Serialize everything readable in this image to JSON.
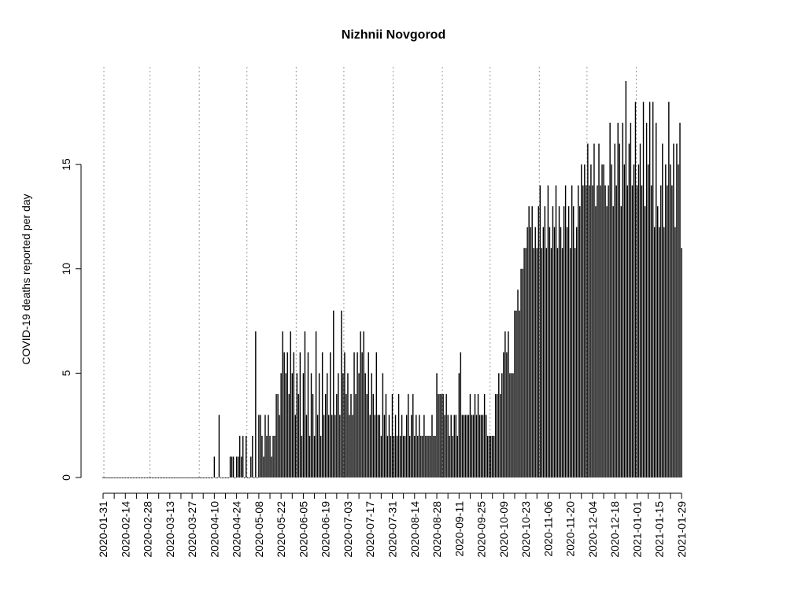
{
  "chart_data": {
    "type": "bar",
    "title": "Nizhnii Novgorod",
    "y_label": "COVID-19 deaths reported per day",
    "color": "#000000",
    "x": [
      "2020-01-31",
      "2020-02-01",
      "2020-02-02",
      "2020-02-03",
      "2020-02-04",
      "2020-02-05",
      "2020-02-06",
      "2020-02-07",
      "2020-02-08",
      "2020-02-09",
      "2020-02-10",
      "2020-02-11",
      "2020-02-12",
      "2020-02-13",
      "2020-02-14",
      "2020-02-15",
      "2020-02-16",
      "2020-02-17",
      "2020-02-18",
      "2020-02-19",
      "2020-02-20",
      "2020-02-21",
      "2020-02-22",
      "2020-02-23",
      "2020-02-24",
      "2020-02-25",
      "2020-02-26",
      "2020-02-27",
      "2020-02-28",
      "2020-02-29",
      "2020-03-01",
      "2020-03-02",
      "2020-03-03",
      "2020-03-04",
      "2020-03-05",
      "2020-03-06",
      "2020-03-07",
      "2020-03-08",
      "2020-03-09",
      "2020-03-10",
      "2020-03-11",
      "2020-03-12",
      "2020-03-13",
      "2020-03-14",
      "2020-03-15",
      "2020-03-16",
      "2020-03-17",
      "2020-03-18",
      "2020-03-19",
      "2020-03-20",
      "2020-03-21",
      "2020-03-22",
      "2020-03-23",
      "2020-03-24",
      "2020-03-25",
      "2020-03-26",
      "2020-03-27",
      "2020-03-28",
      "2020-03-29",
      "2020-03-30",
      "2020-03-31",
      "2020-04-01",
      "2020-04-02",
      "2020-04-03",
      "2020-04-04",
      "2020-04-05",
      "2020-04-06",
      "2020-04-07",
      "2020-04-08",
      "2020-04-09",
      "2020-04-10",
      "2020-04-11",
      "2020-04-12",
      "2020-04-13",
      "2020-04-14",
      "2020-04-15",
      "2020-04-16",
      "2020-04-17",
      "2020-04-18",
      "2020-04-19",
      "2020-04-20",
      "2020-04-21",
      "2020-04-22",
      "2020-04-23",
      "2020-04-24",
      "2020-04-25",
      "2020-04-26",
      "2020-04-27",
      "2020-04-28",
      "2020-04-29",
      "2020-04-30",
      "2020-05-01",
      "2020-05-02",
      "2020-05-03",
      "2020-05-04",
      "2020-05-05",
      "2020-05-06",
      "2020-05-07",
      "2020-05-08",
      "2020-05-09",
      "2020-05-10",
      "2020-05-11",
      "2020-05-12",
      "2020-05-13",
      "2020-05-14",
      "2020-05-15",
      "2020-05-16",
      "2020-05-17",
      "2020-05-18",
      "2020-05-19",
      "2020-05-20",
      "2020-05-21",
      "2020-05-22",
      "2020-05-23",
      "2020-05-24",
      "2020-05-25",
      "2020-05-26",
      "2020-05-27",
      "2020-05-28",
      "2020-05-29",
      "2020-05-30",
      "2020-05-31",
      "2020-06-01",
      "2020-06-02",
      "2020-06-03",
      "2020-06-04",
      "2020-06-05",
      "2020-06-06",
      "2020-06-07",
      "2020-06-08",
      "2020-06-09",
      "2020-06-10",
      "2020-06-11",
      "2020-06-12",
      "2020-06-13",
      "2020-06-14",
      "2020-06-15",
      "2020-06-16",
      "2020-06-17",
      "2020-06-18",
      "2020-06-19",
      "2020-06-20",
      "2020-06-21",
      "2020-06-22",
      "2020-06-23",
      "2020-06-24",
      "2020-06-25",
      "2020-06-26",
      "2020-06-27",
      "2020-06-28",
      "2020-06-29",
      "2020-06-30",
      "2020-07-01",
      "2020-07-02",
      "2020-07-03",
      "2020-07-04",
      "2020-07-05",
      "2020-07-06",
      "2020-07-07",
      "2020-07-08",
      "2020-07-09",
      "2020-07-10",
      "2020-07-11",
      "2020-07-12",
      "2020-07-13",
      "2020-07-14",
      "2020-07-15",
      "2020-07-16",
      "2020-07-17",
      "2020-07-18",
      "2020-07-19",
      "2020-07-20",
      "2020-07-21",
      "2020-07-22",
      "2020-07-23",
      "2020-07-24",
      "2020-07-25",
      "2020-07-26",
      "2020-07-27",
      "2020-07-28",
      "2020-07-29",
      "2020-07-30",
      "2020-07-31",
      "2020-08-01",
      "2020-08-02",
      "2020-08-03",
      "2020-08-04",
      "2020-08-05",
      "2020-08-06",
      "2020-08-07",
      "2020-08-08",
      "2020-08-09",
      "2020-08-10",
      "2020-08-11",
      "2020-08-12",
      "2020-08-13",
      "2020-08-14",
      "2020-08-15",
      "2020-08-16",
      "2020-08-17",
      "2020-08-18",
      "2020-08-19",
      "2020-08-20",
      "2020-08-21",
      "2020-08-22",
      "2020-08-23",
      "2020-08-24",
      "2020-08-25",
      "2020-08-26",
      "2020-08-27",
      "2020-08-28",
      "2020-08-29",
      "2020-08-30",
      "2020-08-31",
      "2020-09-01",
      "2020-09-02",
      "2020-09-03",
      "2020-09-04",
      "2020-09-05",
      "2020-09-06",
      "2020-09-07",
      "2020-09-08",
      "2020-09-09",
      "2020-09-10",
      "2020-09-11",
      "2020-09-12",
      "2020-09-13",
      "2020-09-14",
      "2020-09-15",
      "2020-09-16",
      "2020-09-17",
      "2020-09-18",
      "2020-09-19",
      "2020-09-20",
      "2020-09-21",
      "2020-09-22",
      "2020-09-23",
      "2020-09-24",
      "2020-09-25",
      "2020-09-26",
      "2020-09-27",
      "2020-09-28",
      "2020-09-29",
      "2020-09-30",
      "2020-10-01",
      "2020-10-02",
      "2020-10-03",
      "2020-10-04",
      "2020-10-05",
      "2020-10-06",
      "2020-10-07",
      "2020-10-08",
      "2020-10-09",
      "2020-10-10",
      "2020-10-11",
      "2020-10-12",
      "2020-10-13",
      "2020-10-14",
      "2020-10-15",
      "2020-10-16",
      "2020-10-17",
      "2020-10-18",
      "2020-10-19",
      "2020-10-20",
      "2020-10-21",
      "2020-10-22",
      "2020-10-23",
      "2020-10-24",
      "2020-10-25",
      "2020-10-26",
      "2020-10-27",
      "2020-10-28",
      "2020-10-29",
      "2020-10-30",
      "2020-10-31",
      "2020-11-01",
      "2020-11-02",
      "2020-11-03",
      "2020-11-04",
      "2020-11-05",
      "2020-11-06",
      "2020-11-07",
      "2020-11-08",
      "2020-11-09",
      "2020-11-10",
      "2020-11-11",
      "2020-11-12",
      "2020-11-13",
      "2020-11-14",
      "2020-11-15",
      "2020-11-16",
      "2020-11-17",
      "2020-11-18",
      "2020-11-19",
      "2020-11-20",
      "2020-11-21",
      "2020-11-22",
      "2020-11-23",
      "2020-11-24",
      "2020-11-25",
      "2020-11-26",
      "2020-11-27",
      "2020-11-28",
      "2020-11-29",
      "2020-11-30",
      "2020-12-01",
      "2020-12-02",
      "2020-12-03",
      "2020-12-04",
      "2020-12-05",
      "2020-12-06",
      "2020-12-07",
      "2020-12-08",
      "2020-12-09",
      "2020-12-10",
      "2020-12-11",
      "2020-12-12",
      "2020-12-13",
      "2020-12-14",
      "2020-12-15",
      "2020-12-16",
      "2020-12-17",
      "2020-12-18",
      "2020-12-19",
      "2020-12-20",
      "2020-12-21",
      "2020-12-22",
      "2020-12-23",
      "2020-12-24",
      "2020-12-25",
      "2020-12-26",
      "2020-12-27",
      "2020-12-28",
      "2020-12-29",
      "2020-12-30",
      "2020-12-31",
      "2021-01-01",
      "2021-01-02",
      "2021-01-03",
      "2021-01-04",
      "2021-01-05",
      "2021-01-06",
      "2021-01-07",
      "2021-01-08",
      "2021-01-09",
      "2021-01-10",
      "2021-01-11",
      "2021-01-12",
      "2021-01-13",
      "2021-01-14",
      "2021-01-15",
      "2021-01-16",
      "2021-01-17",
      "2021-01-18",
      "2021-01-19",
      "2021-01-20",
      "2021-01-21",
      "2021-01-22",
      "2021-01-23",
      "2021-01-24",
      "2021-01-25",
      "2021-01-26",
      "2021-01-27",
      "2021-01-28",
      "2021-01-29"
    ],
    "values": [
      0,
      0,
      0,
      0,
      0,
      0,
      0,
      0,
      0,
      0,
      0,
      0,
      0,
      0,
      0,
      0,
      0,
      0,
      0,
      0,
      0,
      0,
      0,
      0,
      0,
      0,
      0,
      0,
      0,
      0,
      0,
      0,
      0,
      0,
      0,
      0,
      0,
      0,
      0,
      0,
      0,
      0,
      0,
      0,
      0,
      0,
      0,
      0,
      0,
      0,
      0,
      0,
      0,
      0,
      0,
      0,
      0,
      0,
      0,
      0,
      0,
      0,
      0,
      0,
      0,
      0,
      0,
      0,
      0,
      0,
      1,
      0,
      0,
      3,
      0,
      0,
      0,
      0,
      0,
      0,
      1,
      1,
      1,
      0,
      1,
      1,
      2,
      1,
      2,
      0,
      2,
      0,
      0,
      1,
      2,
      0,
      7,
      0,
      3,
      3,
      2,
      1,
      3,
      2,
      3,
      2,
      1,
      2,
      2,
      4,
      4,
      3,
      5,
      7,
      6,
      5,
      6,
      4,
      7,
      5,
      6,
      3,
      5,
      4,
      6,
      2,
      5,
      7,
      3,
      6,
      2,
      5,
      4,
      2,
      7,
      3,
      5,
      2,
      6,
      3,
      4,
      5,
      3,
      6,
      3,
      8,
      3,
      4,
      5,
      3,
      8,
      5,
      6,
      4,
      5,
      3,
      4,
      3,
      6,
      4,
      6,
      5,
      7,
      6,
      7,
      5,
      4,
      6,
      3,
      5,
      4,
      3,
      6,
      3,
      3,
      2,
      5,
      3,
      4,
      2,
      3,
      2,
      4,
      2,
      3,
      2,
      4,
      2,
      3,
      2,
      2,
      3,
      4,
      2,
      3,
      4,
      2,
      3,
      2,
      3,
      2,
      2,
      3,
      2,
      2,
      2,
      2,
      3,
      2,
      2,
      5,
      4,
      4,
      4,
      4,
      3,
      4,
      3,
      2,
      3,
      2,
      3,
      3,
      2,
      5,
      6,
      3,
      3,
      3,
      3,
      3,
      4,
      3,
      3,
      4,
      3,
      4,
      3,
      3,
      3,
      4,
      3,
      2,
      2,
      2,
      2,
      2,
      4,
      4,
      5,
      4,
      5,
      6,
      7,
      6,
      7,
      5,
      5,
      5,
      8,
      8,
      9,
      8,
      10,
      10,
      11,
      11,
      12,
      13,
      12,
      13,
      11,
      12,
      11,
      13,
      14,
      11,
      12,
      13,
      11,
      14,
      12,
      11,
      13,
      12,
      14,
      11,
      13,
      12,
      11,
      13,
      14,
      12,
      13,
      11,
      14,
      13,
      11,
      12,
      14,
      13,
      15,
      14,
      15,
      14,
      16,
      14,
      15,
      14,
      16,
      13,
      14,
      16,
      14,
      15,
      15,
      14,
      13,
      14,
      17,
      15,
      13,
      16,
      14,
      17,
      16,
      13,
      17,
      15,
      19,
      14,
      16,
      17,
      14,
      15,
      18,
      14,
      15,
      16,
      14,
      18,
      13,
      17,
      15,
      18,
      14,
      18,
      12,
      17,
      13,
      12,
      14,
      16,
      12,
      15,
      14,
      18,
      15,
      14,
      16,
      12,
      16,
      15,
      17,
      11
    ],
    "xlim": [
      "2020-01-31",
      "2021-01-29"
    ],
    "xticks": [
      "2020-01-31",
      "2020-02-14",
      "2020-02-28",
      "2020-03-13",
      "2020-03-27",
      "2020-04-10",
      "2020-04-24",
      "2020-05-08",
      "2020-05-22",
      "2020-06-05",
      "2020-06-19",
      "2020-07-03",
      "2020-07-17",
      "2020-07-31",
      "2020-08-14",
      "2020-08-28",
      "2020-09-11",
      "2020-09-25",
      "2020-10-09",
      "2020-10-23",
      "2020-11-06",
      "2020-11-20",
      "2020-12-04",
      "2020-12-18",
      "2021-01-01",
      "2021-01-15",
      "2021-01-29"
    ],
    "xgrid": [
      "2020-02-01",
      "2020-03-01",
      "2020-04-01",
      "2020-05-01",
      "2020-06-01",
      "2020-07-01",
      "2020-08-01",
      "2020-09-01",
      "2020-10-01",
      "2020-11-01",
      "2020-12-01",
      "2021-01-01"
    ],
    "ylim": [
      0,
      19
    ],
    "yticks": [
      0,
      5,
      10,
      15
    ]
  }
}
